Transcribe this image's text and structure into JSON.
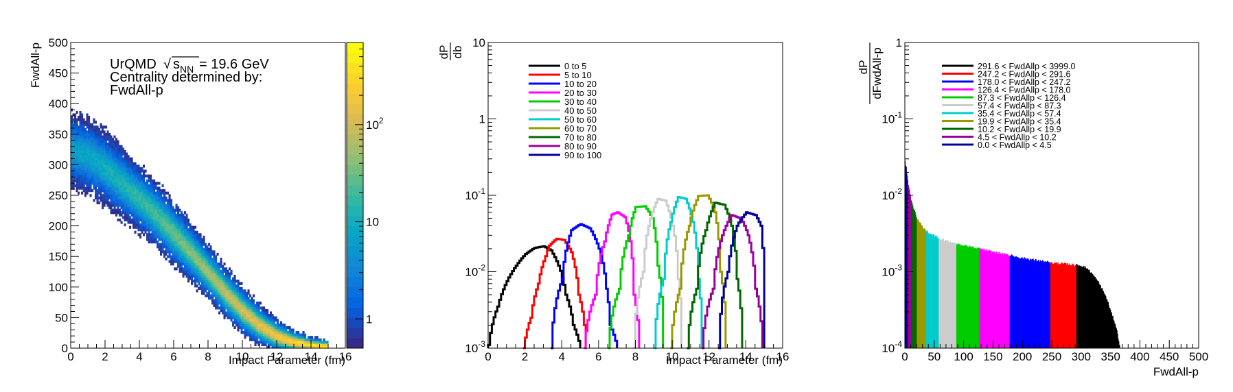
{
  "chart_data": [
    {
      "type": "heatmap",
      "annotation_lines": [
        "UrQMD",
        "= 19.6 GeV",
        "Centrality determined by:",
        "FwdAll-p"
      ],
      "sqrt_symbol": "√",
      "sqrt_arg": "s",
      "sqrt_sub": "NN",
      "xlabel": "Impact Parameter (fm)",
      "ylabel": "FwdAll-p",
      "xlim": [
        0,
        16
      ],
      "ylim": [
        0,
        500
      ],
      "xticks": [
        "0",
        "2",
        "4",
        "6",
        "8",
        "10",
        "12",
        "14",
        "16"
      ],
      "yticks": [
        "0",
        "50",
        "100",
        "150",
        "200",
        "250",
        "300",
        "350",
        "400",
        "450",
        "500"
      ],
      "b_max": 15,
      "band_center": [
        {
          "b": 0,
          "y": 325
        },
        {
          "b": 1,
          "y": 315
        },
        {
          "b": 2,
          "y": 295
        },
        {
          "b": 3,
          "y": 270
        },
        {
          "b": 4,
          "y": 245
        },
        {
          "b": 5,
          "y": 218
        },
        {
          "b": 6,
          "y": 188
        },
        {
          "b": 7,
          "y": 157
        },
        {
          "b": 8,
          "y": 125
        },
        {
          "b": 9,
          "y": 92
        },
        {
          "b": 10,
          "y": 62
        },
        {
          "b": 11,
          "y": 38
        },
        {
          "b": 12,
          "y": 20
        },
        {
          "b": 13,
          "y": 10
        },
        {
          "b": 14,
          "y": 5
        },
        {
          "b": 15,
          "y": 3
        }
      ],
      "band_halfwidth": [
        {
          "b": 0,
          "y": 45
        },
        {
          "b": 2,
          "y": 45
        },
        {
          "b": 4,
          "y": 40
        },
        {
          "b": 6,
          "y": 38
        },
        {
          "b": 8,
          "y": 32
        },
        {
          "b": 10,
          "y": 28
        },
        {
          "b": 12,
          "y": 20
        },
        {
          "b": 14,
          "y": 10
        },
        {
          "b": 15,
          "y": 8
        }
      ],
      "colorbar": {
        "scale": "log",
        "ticks": [
          "1",
          "10",
          "10^2"
        ],
        "range": [
          0.5,
          700
        ]
      },
      "palette": [
        "#352a87",
        "#0363e1",
        "#1485d4",
        "#06a7c6",
        "#38b99e",
        "#92bf73",
        "#d9ba56",
        "#fcce2e",
        "#f9fb0e"
      ]
    },
    {
      "type": "line",
      "ylabel_num": "dP",
      "ylabel_den": "db",
      "xlabel": "Impact Parameter (fm)",
      "xlim": [
        0,
        16
      ],
      "ylim": [
        0.001,
        10
      ],
      "yscale": "log",
      "xticks": [
        "0",
        "2",
        "4",
        "6",
        "8",
        "10",
        "12",
        "14",
        "16"
      ],
      "yticks": [
        {
          "value": 0.001,
          "label": "10^-3"
        },
        {
          "value": 0.01,
          "label": "10^-2"
        },
        {
          "value": 0.1,
          "label": "10^-1"
        },
        {
          "value": 1,
          "label": "1"
        },
        {
          "value": 10,
          "label": "10"
        }
      ],
      "legend_position": "top-left",
      "series": [
        {
          "name": "0 to 5",
          "color": "#000000",
          "x": [
            0,
            0.5,
            1,
            1.5,
            2,
            2.5,
            3,
            3.4,
            3.8,
            4.2,
            4.6,
            5.0
          ],
          "y": [
            0.0011,
            0.0035,
            0.0075,
            0.012,
            0.017,
            0.0205,
            0.0215,
            0.019,
            0.012,
            0.005,
            0.002,
            0.001
          ]
        },
        {
          "name": "5 to 10",
          "color": "#ff0000",
          "x": [
            1.9,
            2.3,
            2.7,
            3.1,
            3.3,
            3.7,
            4.1,
            4.5,
            4.9,
            5.3
          ],
          "y": [
            0.001,
            0.0025,
            0.007,
            0.016,
            0.022,
            0.027,
            0.026,
            0.018,
            0.005,
            0.001
          ]
        },
        {
          "name": "10 to 20",
          "color": "#0000ff",
          "x": [
            3.4,
            4.0,
            4.5,
            5.0,
            5.5,
            6.0,
            6.4,
            6.6,
            7.0
          ],
          "y": [
            0.001,
            0.008,
            0.035,
            0.042,
            0.037,
            0.02,
            0.006,
            0.002,
            0.001
          ]
        },
        {
          "name": "20 to 30",
          "color": "#ff00ff",
          "x": [
            5.2,
            5.8,
            6.3,
            6.7,
            7.0,
            7.4,
            7.7,
            7.9,
            8.2
          ],
          "y": [
            0.001,
            0.005,
            0.025,
            0.056,
            0.06,
            0.052,
            0.025,
            0.005,
            0.001
          ]
        },
        {
          "name": "30 to 40",
          "color": "#00cc00",
          "x": [
            6.5,
            7.1,
            7.6,
            8.0,
            8.5,
            8.9,
            9.2,
            9.5
          ],
          "y": [
            0.001,
            0.006,
            0.03,
            0.07,
            0.072,
            0.05,
            0.012,
            0.001
          ]
        },
        {
          "name": "40 to 50",
          "color": "#cccccc",
          "x": [
            7.9,
            8.4,
            8.8,
            9.2,
            9.6,
            10.0,
            10.3,
            10.5
          ],
          "y": [
            0.001,
            0.01,
            0.05,
            0.09,
            0.085,
            0.04,
            0.008,
            0.001
          ]
        },
        {
          "name": "50 to 60",
          "color": "#00cccc",
          "x": [
            9.0,
            9.5,
            9.9,
            10.3,
            10.7,
            11.1,
            11.4,
            11.6
          ],
          "y": [
            0.001,
            0.008,
            0.045,
            0.095,
            0.09,
            0.045,
            0.008,
            0.001
          ]
        },
        {
          "name": "60 to 70",
          "color": "#999900",
          "x": [
            9.9,
            10.4,
            10.9,
            11.4,
            11.9,
            12.3,
            12.6,
            12.9
          ],
          "y": [
            0.001,
            0.006,
            0.04,
            0.098,
            0.1,
            0.06,
            0.01,
            0.001
          ]
        },
        {
          "name": "70 to 80",
          "color": "#006600",
          "x": [
            10.8,
            11.3,
            11.8,
            12.3,
            12.8,
            13.2,
            13.5,
            13.8
          ],
          "y": [
            0.001,
            0.006,
            0.035,
            0.08,
            0.075,
            0.04,
            0.008,
            0.001
          ]
        },
        {
          "name": "80 to 90",
          "color": "#990099",
          "x": [
            11.6,
            12.2,
            12.7,
            13.2,
            13.7,
            14.1,
            14.5,
            14.9
          ],
          "y": [
            0.001,
            0.006,
            0.03,
            0.055,
            0.05,
            0.03,
            0.006,
            0.001
          ]
        },
        {
          "name": "90 to 100",
          "color": "#000099",
          "x": [
            12.5,
            13.0,
            13.5,
            14.0,
            14.5,
            14.8,
            15.0
          ],
          "y": [
            0.001,
            0.01,
            0.04,
            0.06,
            0.055,
            0.04,
            0.001
          ]
        }
      ]
    },
    {
      "type": "area",
      "ylabel_num": "dP",
      "ylabel_den": "dFwdAll-p",
      "xlabel": "FwdAll-p",
      "xlim": [
        0,
        500
      ],
      "ylim": [
        0.0001,
        1
      ],
      "yscale": "log",
      "xticks": [
        "0",
        "50",
        "100",
        "150",
        "200",
        "250",
        "300",
        "350",
        "400",
        "450",
        "500"
      ],
      "yticks": [
        {
          "value": 0.0001,
          "label": "10^-4"
        },
        {
          "value": 0.001,
          "label": "10^-3"
        },
        {
          "value": 0.01,
          "label": "10^-2"
        },
        {
          "value": 0.1,
          "label": "10^-1"
        },
        {
          "value": 1,
          "label": "1"
        }
      ],
      "legend_position": "top-left",
      "distribution": [
        {
          "x": 0,
          "y": 0.028
        },
        {
          "x": 3,
          "y": 0.02
        },
        {
          "x": 6,
          "y": 0.013
        },
        {
          "x": 10,
          "y": 0.009
        },
        {
          "x": 15,
          "y": 0.0065
        },
        {
          "x": 20,
          "y": 0.005
        },
        {
          "x": 30,
          "y": 0.0038
        },
        {
          "x": 40,
          "y": 0.0032
        },
        {
          "x": 60,
          "y": 0.0027
        },
        {
          "x": 80,
          "y": 0.0024
        },
        {
          "x": 100,
          "y": 0.0022
        },
        {
          "x": 150,
          "y": 0.0018
        },
        {
          "x": 200,
          "y": 0.0015
        },
        {
          "x": 250,
          "y": 0.0013
        },
        {
          "x": 290,
          "y": 0.00122
        },
        {
          "x": 300,
          "y": 0.0012
        },
        {
          "x": 310,
          "y": 0.0011
        },
        {
          "x": 320,
          "y": 0.0009
        },
        {
          "x": 330,
          "y": 0.0007
        },
        {
          "x": 340,
          "y": 0.0005
        },
        {
          "x": 350,
          "y": 0.0003
        },
        {
          "x": 358,
          "y": 0.0002
        },
        {
          "x": 364,
          "y": 0.00012
        },
        {
          "x": 366,
          "y": 0.0001
        }
      ],
      "series": [
        {
          "name": "291.6 < FwdAllp < 3999.0",
          "color": "#000000",
          "lo": 291.6,
          "hi": 3999.0
        },
        {
          "name": "247.2 < FwdAllp < 291.6",
          "color": "#ff0000",
          "lo": 247.2,
          "hi": 291.6
        },
        {
          "name": "178.0 < FwdAllp < 247.2",
          "color": "#0000ff",
          "lo": 178.0,
          "hi": 247.2
        },
        {
          "name": "126.4 < FwdAllp < 178.0",
          "color": "#ff00ff",
          "lo": 126.4,
          "hi": 178.0
        },
        {
          "name": "87.3 < FwdAllp < 126.4",
          "color": "#00cc00",
          "lo": 87.3,
          "hi": 126.4
        },
        {
          "name": "57.4 < FwdAllp < 87.3",
          "color": "#cccccc",
          "lo": 57.4,
          "hi": 87.3
        },
        {
          "name": "35.4 < FwdAllp < 57.4",
          "color": "#00cccc",
          "lo": 35.4,
          "hi": 57.4
        },
        {
          "name": "19.9 < FwdAllp < 35.4",
          "color": "#999900",
          "lo": 19.9,
          "hi": 35.4
        },
        {
          "name": "10.2 < FwdAllp < 19.9",
          "color": "#006600",
          "lo": 10.2,
          "hi": 19.9
        },
        {
          "name": "4.5 < FwdAllp < 10.2",
          "color": "#990099",
          "lo": 4.5,
          "hi": 10.2
        },
        {
          "name": "0.0 < FwdAllp < 4.5",
          "color": "#000099",
          "lo": 0.0,
          "hi": 4.5
        }
      ]
    }
  ]
}
